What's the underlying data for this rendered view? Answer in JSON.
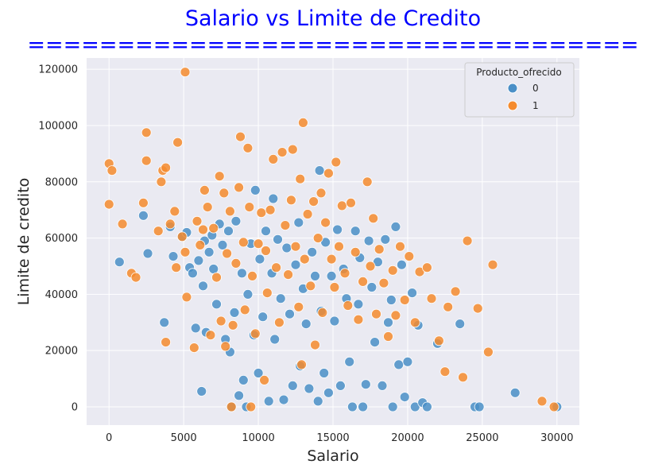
{
  "chart_data": {
    "type": "scatter",
    "title": "Salario vs Limite de Credito",
    "title_underline": "==================================",
    "xlabel": "Salario",
    "ylabel": "Limite de credito",
    "xlim": [
      -1500,
      31500
    ],
    "ylim": [
      -6500,
      124000
    ],
    "xticks": [
      0,
      5000,
      10000,
      15000,
      20000,
      25000,
      30000
    ],
    "yticks": [
      0,
      20000,
      40000,
      60000,
      80000,
      100000,
      120000
    ],
    "grid": true,
    "legend": {
      "title": "Producto_ofrecido",
      "placement": "top-right"
    },
    "series": [
      {
        "name": "0",
        "color": "#4a8fc7",
        "points": [
          [
            700,
            51500
          ],
          [
            2300,
            68000
          ],
          [
            2600,
            54500
          ],
          [
            3700,
            30000
          ],
          [
            4100,
            64000
          ],
          [
            4300,
            53500
          ],
          [
            4900,
            60500
          ],
          [
            5200,
            62000
          ],
          [
            5400,
            49500
          ],
          [
            5600,
            47500
          ],
          [
            5800,
            28000
          ],
          [
            6000,
            52000
          ],
          [
            6200,
            5500
          ],
          [
            6300,
            43000
          ],
          [
            6400,
            59000
          ],
          [
            6500,
            26500
          ],
          [
            6700,
            55000
          ],
          [
            6900,
            61000
          ],
          [
            7000,
            49000
          ],
          [
            7200,
            36500
          ],
          [
            7400,
            65000
          ],
          [
            7600,
            57500
          ],
          [
            7800,
            24000
          ],
          [
            8000,
            62500
          ],
          [
            8100,
            19500
          ],
          [
            8200,
            0
          ],
          [
            8400,
            33500
          ],
          [
            8500,
            66000
          ],
          [
            8700,
            4000
          ],
          [
            8900,
            47500
          ],
          [
            9000,
            9500
          ],
          [
            9200,
            0
          ],
          [
            9300,
            40000
          ],
          [
            9500,
            58000
          ],
          [
            9700,
            25500
          ],
          [
            9800,
            77000
          ],
          [
            10000,
            12000
          ],
          [
            10100,
            52500
          ],
          [
            10300,
            32000
          ],
          [
            10500,
            62500
          ],
          [
            10700,
            2000
          ],
          [
            10900,
            47500
          ],
          [
            11000,
            74000
          ],
          [
            11100,
            24000
          ],
          [
            11300,
            59500
          ],
          [
            11500,
            38500
          ],
          [
            11700,
            2500
          ],
          [
            11900,
            56500
          ],
          [
            12100,
            33000
          ],
          [
            12300,
            7500
          ],
          [
            12500,
            50500
          ],
          [
            12700,
            65500
          ],
          [
            12800,
            14500
          ],
          [
            13000,
            42000
          ],
          [
            13200,
            29500
          ],
          [
            13400,
            6500
          ],
          [
            13600,
            55000
          ],
          [
            13800,
            46500
          ],
          [
            14000,
            2000
          ],
          [
            14100,
            84000
          ],
          [
            14200,
            34000
          ],
          [
            14400,
            12000
          ],
          [
            14500,
            58500
          ],
          [
            14700,
            5000
          ],
          [
            14900,
            46500
          ],
          [
            15100,
            30500
          ],
          [
            15300,
            63000
          ],
          [
            15500,
            7500
          ],
          [
            15700,
            49000
          ],
          [
            15900,
            38500
          ],
          [
            16100,
            16000
          ],
          [
            16300,
            0
          ],
          [
            16500,
            62500
          ],
          [
            16700,
            36500
          ],
          [
            16800,
            53000
          ],
          [
            17000,
            0
          ],
          [
            17200,
            8000
          ],
          [
            17400,
            59000
          ],
          [
            17600,
            42500
          ],
          [
            17800,
            23000
          ],
          [
            18000,
            51500
          ],
          [
            18300,
            7500
          ],
          [
            18500,
            59500
          ],
          [
            18700,
            30000
          ],
          [
            18900,
            38000
          ],
          [
            19000,
            0
          ],
          [
            19200,
            64000
          ],
          [
            19400,
            15000
          ],
          [
            19600,
            50500
          ],
          [
            19800,
            3500
          ],
          [
            20000,
            16000
          ],
          [
            20300,
            40500
          ],
          [
            20500,
            0
          ],
          [
            20700,
            29000
          ],
          [
            21000,
            1500
          ],
          [
            21300,
            0
          ],
          [
            22000,
            22500
          ],
          [
            23500,
            29500
          ],
          [
            24500,
            0
          ],
          [
            24800,
            0
          ],
          [
            27200,
            5000
          ],
          [
            30000,
            0
          ]
        ]
      },
      {
        "name": "1",
        "color": "#f58b2e",
        "points": [
          [
            0,
            86500
          ],
          [
            0,
            72000
          ],
          [
            200,
            84000
          ],
          [
            900,
            65000
          ],
          [
            1500,
            47500
          ],
          [
            1800,
            46000
          ],
          [
            2300,
            72500
          ],
          [
            2500,
            97500
          ],
          [
            2500,
            87500
          ],
          [
            3300,
            62500
          ],
          [
            3500,
            80000
          ],
          [
            3600,
            84000
          ],
          [
            3800,
            85000
          ],
          [
            3800,
            23000
          ],
          [
            4100,
            65000
          ],
          [
            4400,
            69500
          ],
          [
            4500,
            49500
          ],
          [
            4600,
            94000
          ],
          [
            4900,
            60500
          ],
          [
            5100,
            55000
          ],
          [
            5100,
            119000
          ],
          [
            5200,
            39000
          ],
          [
            5700,
            21000
          ],
          [
            5900,
            66000
          ],
          [
            6100,
            57500
          ],
          [
            6300,
            63000
          ],
          [
            6400,
            77000
          ],
          [
            6600,
            71000
          ],
          [
            6800,
            25500
          ],
          [
            7000,
            63500
          ],
          [
            7200,
            46000
          ],
          [
            7400,
            82000
          ],
          [
            7500,
            30500
          ],
          [
            7700,
            76000
          ],
          [
            7800,
            21500
          ],
          [
            7900,
            54500
          ],
          [
            8100,
            69500
          ],
          [
            8200,
            0
          ],
          [
            8300,
            29000
          ],
          [
            8500,
            51000
          ],
          [
            8700,
            78000
          ],
          [
            8800,
            96000
          ],
          [
            9000,
            58500
          ],
          [
            9100,
            34500
          ],
          [
            9300,
            92000
          ],
          [
            9400,
            71000
          ],
          [
            9500,
            0
          ],
          [
            9600,
            46500
          ],
          [
            9800,
            26000
          ],
          [
            10000,
            58000
          ],
          [
            10200,
            69000
          ],
          [
            10400,
            9500
          ],
          [
            10500,
            55500
          ],
          [
            10600,
            40500
          ],
          [
            10800,
            70000
          ],
          [
            11000,
            88000
          ],
          [
            11200,
            49500
          ],
          [
            11400,
            30000
          ],
          [
            11600,
            90500
          ],
          [
            11800,
            64500
          ],
          [
            12000,
            47000
          ],
          [
            12200,
            73500
          ],
          [
            12300,
            91500
          ],
          [
            12500,
            57000
          ],
          [
            12700,
            35500
          ],
          [
            12800,
            81000
          ],
          [
            12900,
            15000
          ],
          [
            13000,
            101000
          ],
          [
            13100,
            52500
          ],
          [
            13300,
            68500
          ],
          [
            13500,
            43000
          ],
          [
            13700,
            73000
          ],
          [
            13800,
            22000
          ],
          [
            14000,
            60000
          ],
          [
            14200,
            76000
          ],
          [
            14300,
            33500
          ],
          [
            14500,
            65500
          ],
          [
            14700,
            83000
          ],
          [
            14900,
            52500
          ],
          [
            15100,
            42500
          ],
          [
            15200,
            87000
          ],
          [
            15400,
            57000
          ],
          [
            15600,
            71500
          ],
          [
            15800,
            47500
          ],
          [
            16000,
            36000
          ],
          [
            16200,
            72500
          ],
          [
            16500,
            55000
          ],
          [
            16700,
            31000
          ],
          [
            17000,
            44500
          ],
          [
            17300,
            80000
          ],
          [
            17500,
            50000
          ],
          [
            17700,
            67000
          ],
          [
            17900,
            33000
          ],
          [
            18100,
            56000
          ],
          [
            18400,
            44000
          ],
          [
            18700,
            25000
          ],
          [
            19000,
            48500
          ],
          [
            19200,
            32500
          ],
          [
            19500,
            57000
          ],
          [
            19800,
            38000
          ],
          [
            20100,
            53500
          ],
          [
            20500,
            30000
          ],
          [
            20800,
            48000
          ],
          [
            21300,
            49500
          ],
          [
            21600,
            38500
          ],
          [
            22100,
            23500
          ],
          [
            22500,
            12500
          ],
          [
            22700,
            35500
          ],
          [
            23200,
            41000
          ],
          [
            23700,
            10500
          ],
          [
            24000,
            59000
          ],
          [
            24700,
            35000
          ],
          [
            25400,
            19500
          ],
          [
            25700,
            50500
          ],
          [
            29000,
            2000
          ],
          [
            29800,
            0
          ]
        ]
      }
    ]
  }
}
